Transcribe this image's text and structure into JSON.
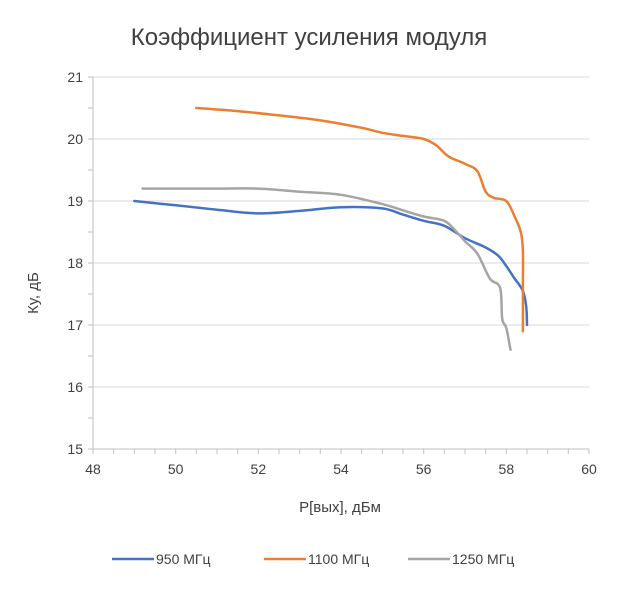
{
  "chart_data": {
    "type": "line",
    "title": "Коэффициент усиления модуля",
    "xlabel": "P[вых], дБм",
    "ylabel": "Ку, дБ",
    "xlim": [
      48,
      60
    ],
    "ylim": [
      15,
      21
    ],
    "x_ticks": [
      "48",
      "50",
      "52",
      "54",
      "56",
      "58",
      "60"
    ],
    "y_ticks": [
      "15",
      "16",
      "17",
      "18",
      "19",
      "20",
      "21"
    ],
    "grid": "horizontal",
    "legend_position": "bottom",
    "series": [
      {
        "name": "950 МГц",
        "color": "#4472C4",
        "points": [
          [
            49.0,
            19.0
          ],
          [
            50.0,
            18.93
          ],
          [
            51.0,
            18.86
          ],
          [
            52.0,
            18.8
          ],
          [
            53.0,
            18.84
          ],
          [
            54.0,
            18.9
          ],
          [
            55.0,
            18.88
          ],
          [
            55.5,
            18.78
          ],
          [
            56.0,
            18.68
          ],
          [
            56.5,
            18.6
          ],
          [
            57.0,
            18.4
          ],
          [
            57.5,
            18.25
          ],
          [
            57.8,
            18.12
          ],
          [
            58.0,
            17.95
          ],
          [
            58.2,
            17.75
          ],
          [
            58.4,
            17.55
          ],
          [
            58.48,
            17.3
          ],
          [
            58.5,
            17.0
          ]
        ]
      },
      {
        "name": "1100 МГц",
        "color": "#ED7D31",
        "points": [
          [
            50.5,
            20.5
          ],
          [
            51.5,
            20.45
          ],
          [
            52.5,
            20.38
          ],
          [
            53.5,
            20.3
          ],
          [
            54.5,
            20.18
          ],
          [
            55.0,
            20.1
          ],
          [
            55.5,
            20.05
          ],
          [
            56.0,
            20.0
          ],
          [
            56.3,
            19.9
          ],
          [
            56.6,
            19.72
          ],
          [
            57.0,
            19.6
          ],
          [
            57.3,
            19.48
          ],
          [
            57.5,
            19.15
          ],
          [
            57.7,
            19.05
          ],
          [
            58.0,
            19.0
          ],
          [
            58.2,
            18.75
          ],
          [
            58.35,
            18.5
          ],
          [
            58.4,
            18.2
          ],
          [
            58.4,
            17.6
          ],
          [
            58.4,
            16.9
          ]
        ]
      },
      {
        "name": "1250 МГц",
        "color": "#A5A5A5",
        "points": [
          [
            49.2,
            19.2
          ],
          [
            50.0,
            19.2
          ],
          [
            51.0,
            19.2
          ],
          [
            52.0,
            19.2
          ],
          [
            53.0,
            19.15
          ],
          [
            54.0,
            19.1
          ],
          [
            55.0,
            18.95
          ],
          [
            55.5,
            18.85
          ],
          [
            56.0,
            18.75
          ],
          [
            56.5,
            18.68
          ],
          [
            56.8,
            18.5
          ],
          [
            57.0,
            18.35
          ],
          [
            57.3,
            18.15
          ],
          [
            57.6,
            17.75
          ],
          [
            57.85,
            17.6
          ],
          [
            57.9,
            17.1
          ],
          [
            58.0,
            16.95
          ],
          [
            58.1,
            16.6
          ]
        ]
      }
    ]
  }
}
